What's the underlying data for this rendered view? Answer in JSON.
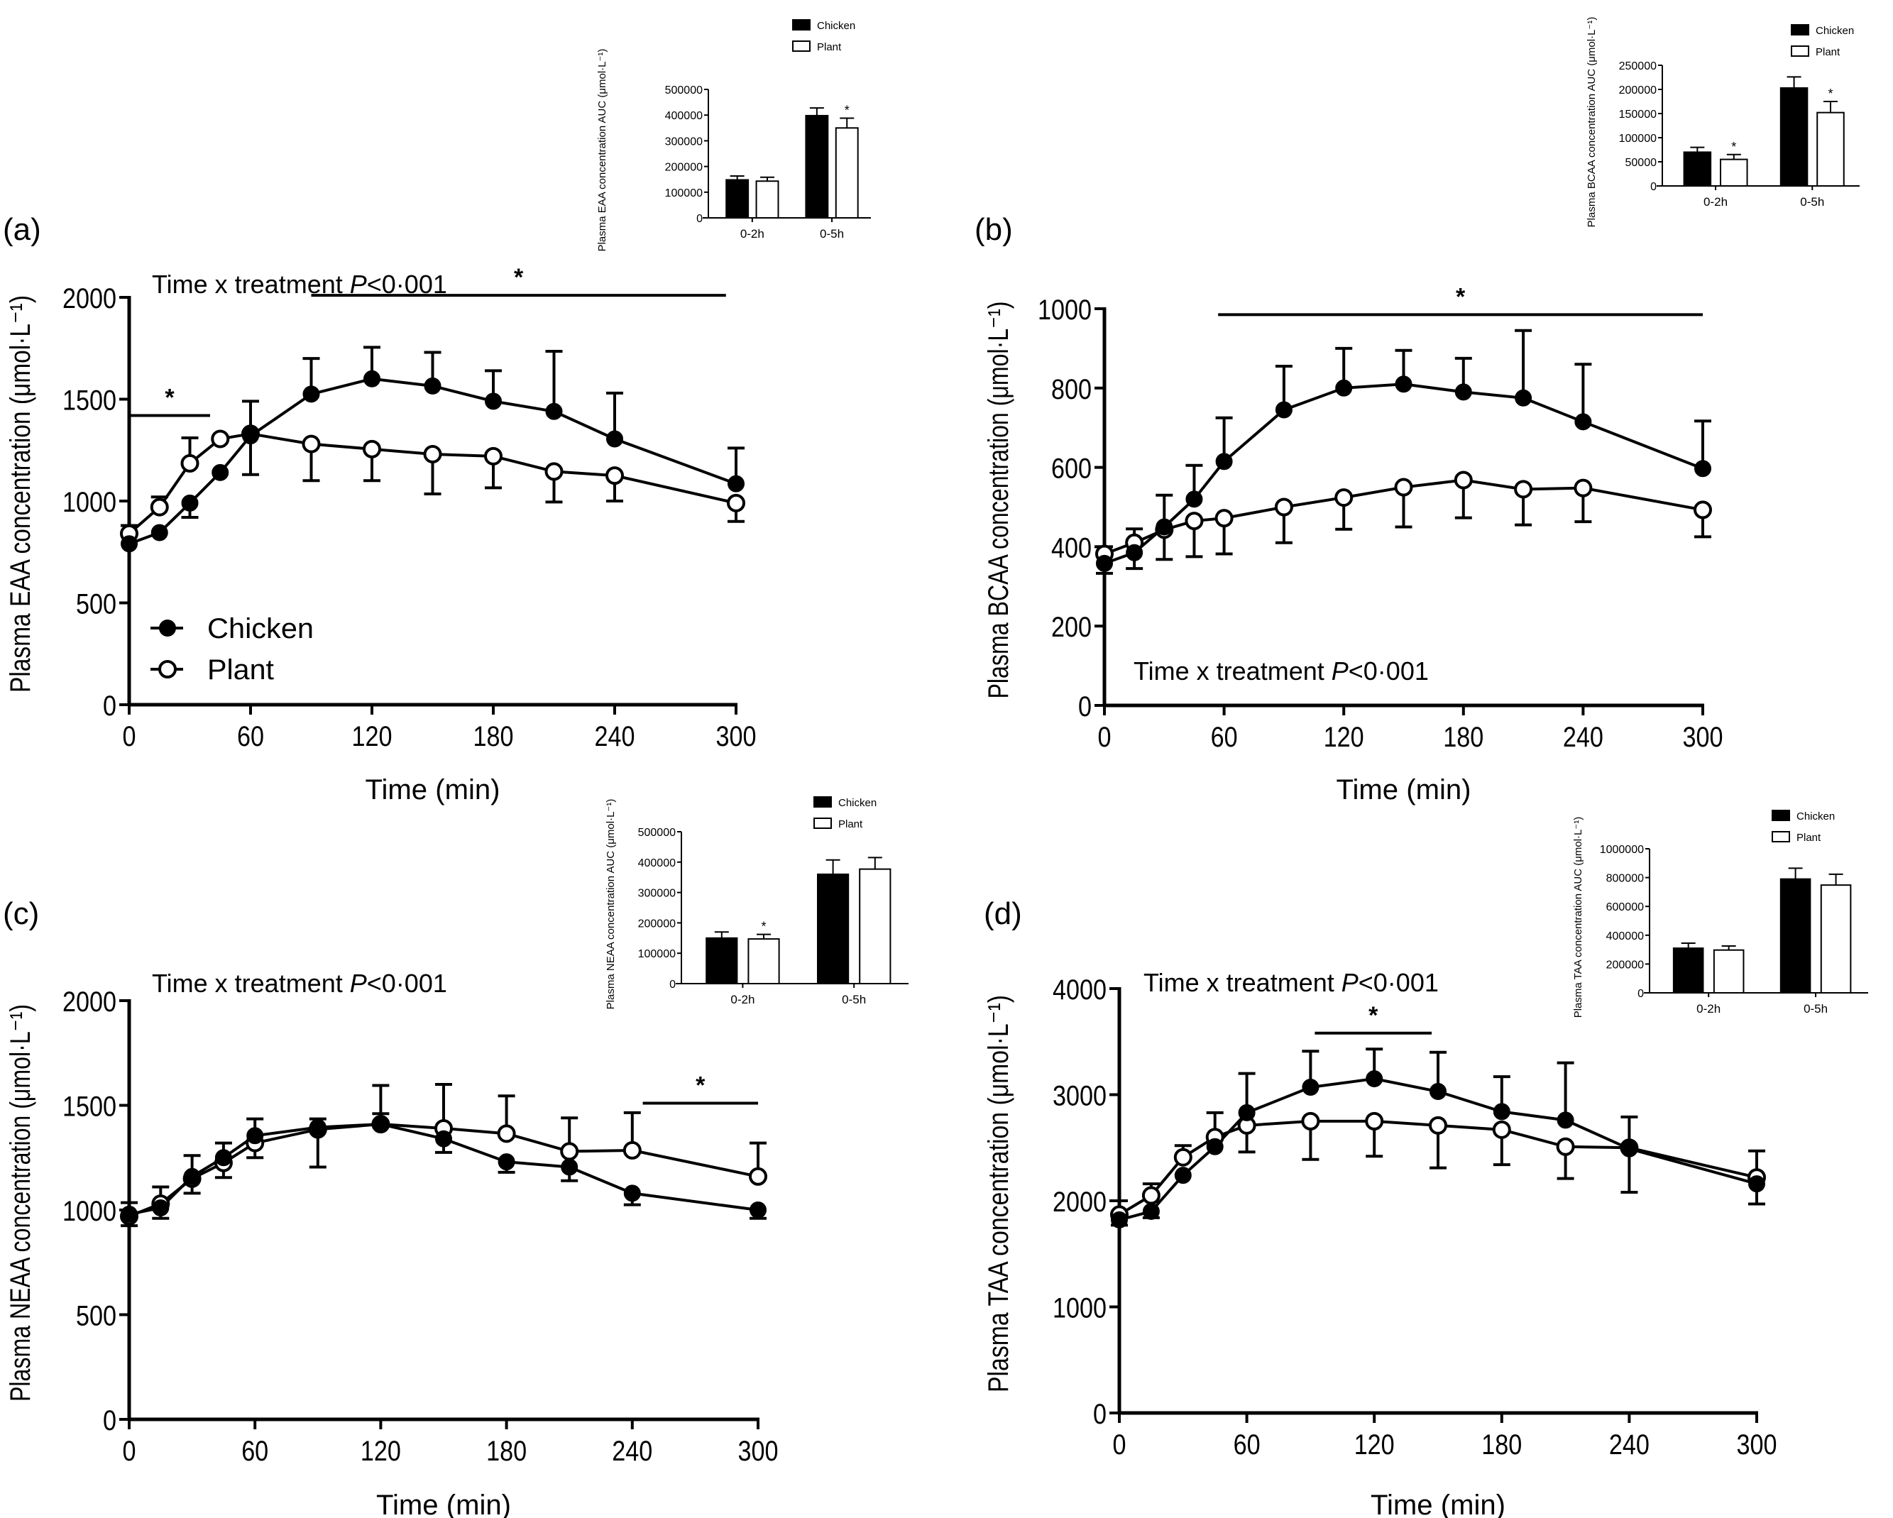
{
  "figure": {
    "legend": {
      "chicken": "Chicken",
      "plant": "Plant"
    }
  },
  "chart_data": [
    {
      "panel": "(a)",
      "type": "line",
      "title": "Time x treatment P<0·001",
      "annotation_prefix": "Time x treatment ",
      "annotation_p": "P",
      "annotation_suffix": "<0·001",
      "xlabel": "Time (min)",
      "ylabel": "Plasma EAA concentration (μmol·L⁻¹)",
      "xlim": [
        0,
        300
      ],
      "ylim": [
        0,
        2000
      ],
      "xticks": [
        0,
        60,
        120,
        180,
        240,
        300
      ],
      "yticks": [
        0,
        500,
        1000,
        1500,
        2000
      ],
      "legend_position": "bottom-left",
      "x": [
        0,
        15,
        30,
        45,
        60,
        90,
        120,
        150,
        180,
        210,
        240,
        300
      ],
      "series": [
        {
          "name": "Chicken",
          "marker": "filled-circle",
          "values": [
            790,
            845,
            990,
            1140,
            1320,
            1525,
            1600,
            1565,
            1490,
            1440,
            1305,
            1085
          ],
          "sd": [
            0,
            0,
            70,
            0,
            190,
            175,
            155,
            165,
            150,
            295,
            225,
            175
          ]
        },
        {
          "name": "Plant",
          "marker": "open-circle",
          "values": [
            840,
            970,
            1185,
            1305,
            1330,
            1280,
            1255,
            1230,
            1220,
            1145,
            1125,
            990
          ],
          "sd": [
            40,
            50,
            125,
            0,
            160,
            180,
            155,
            195,
            155,
            150,
            125,
            90
          ]
        }
      ],
      "significance_bars": [
        {
          "from": 0,
          "to": 40,
          "label": "*",
          "y": 1420
        },
        {
          "from": 90,
          "to": 295,
          "label": "*",
          "y": 2010
        }
      ],
      "inset": {
        "type": "bar",
        "ylabel": "Plasma EAA concentration AUC (μmol·L⁻¹)",
        "categories": [
          "0-2h",
          "0-5h"
        ],
        "ylim": [
          0,
          500000
        ],
        "yticks": [
          "0",
          "100000",
          "200000",
          "300000",
          "400000",
          "500000"
        ],
        "series": [
          {
            "name": "Chicken",
            "values": [
              148000,
              398000
            ],
            "sd": [
              15000,
              30000
            ],
            "star": [
              false,
              false
            ]
          },
          {
            "name": "Plant",
            "values": [
              143000,
              350000
            ],
            "sd": [
              15000,
              38000
            ],
            "star": [
              false,
              true
            ]
          }
        ]
      }
    },
    {
      "panel": "(b)",
      "type": "line",
      "title": "Time x treatment P<0·001",
      "annotation_prefix": "Time x treatment ",
      "annotation_p": "P",
      "annotation_suffix": "<0·001",
      "xlabel": "Time (min)",
      "ylabel": "Plasma BCAA concentration (μmol·L⁻¹)",
      "xlim": [
        0,
        300
      ],
      "ylim": [
        0,
        1000
      ],
      "xticks": [
        0,
        60,
        120,
        180,
        240,
        300
      ],
      "yticks": [
        0,
        200,
        400,
        600,
        800,
        1000
      ],
      "x": [
        0,
        15,
        30,
        45,
        60,
        90,
        120,
        150,
        180,
        210,
        240,
        300
      ],
      "series": [
        {
          "name": "Chicken",
          "marker": "filled-circle",
          "values": [
            358,
            385,
            450,
            520,
            615,
            745,
            800,
            810,
            790,
            775,
            715,
            597
          ],
          "sd": [
            25,
            40,
            80,
            85,
            110,
            110,
            100,
            85,
            85,
            170,
            145,
            120
          ]
        },
        {
          "name": "Plant",
          "marker": "open-circle",
          "values": [
            382,
            410,
            443,
            465,
            472,
            500,
            524,
            550,
            568,
            545,
            548,
            493
          ],
          "sd": [
            18,
            35,
            75,
            90,
            90,
            90,
            80,
            100,
            95,
            90,
            85,
            68
          ]
        }
      ],
      "significance_bars": [
        {
          "from": 57,
          "to": 300,
          "label": "*",
          "y": 985
        }
      ],
      "inset": {
        "type": "bar",
        "ylabel": "Plasma BCAA concentration AUC (μmol·L⁻¹)",
        "categories": [
          "0-2h",
          "0-5h"
        ],
        "ylim": [
          0,
          250000
        ],
        "yticks": [
          "0",
          "50000",
          "100000",
          "150000",
          "200000",
          "250000"
        ],
        "series": [
          {
            "name": "Chicken",
            "values": [
              70000,
              203000
            ],
            "sd": [
              10000,
              23000
            ],
            "star": [
              false,
              false
            ]
          },
          {
            "name": "Plant",
            "values": [
              55000,
              152000
            ],
            "sd": [
              10000,
              23000
            ],
            "star": [
              true,
              true
            ]
          }
        ]
      }
    },
    {
      "panel": "(c)",
      "type": "line",
      "title": "Time x treatment P<0·001",
      "annotation_prefix": "Time x treatment ",
      "annotation_p": "P",
      "annotation_suffix": "<0·001",
      "xlabel": "Time (min)",
      "ylabel": "Plasma NEAA concentration (μmol·L⁻¹)",
      "xlim": [
        0,
        300
      ],
      "ylim": [
        0,
        2000
      ],
      "xticks": [
        0,
        60,
        120,
        180,
        240,
        300
      ],
      "yticks": [
        0,
        500,
        1000,
        1500,
        2000
      ],
      "x": [
        0,
        15,
        30,
        45,
        60,
        90,
        120,
        150,
        180,
        210,
        240,
        300
      ],
      "series": [
        {
          "name": "Chicken",
          "marker": "filled-circle",
          "values": [
            980,
            1010,
            1160,
            1250,
            1355,
            1395,
            1410,
            1340,
            1230,
            1205,
            1080,
            1000
          ],
          "sd": [
            55,
            50,
            100,
            70,
            80,
            40,
            50,
            65,
            50,
            65,
            55,
            40
          ]
        },
        {
          "name": "Plant",
          "marker": "open-circle",
          "values": [
            970,
            1030,
            1150,
            1225,
            1320,
            1385,
            1410,
            1390,
            1365,
            1280,
            1285,
            1160
          ],
          "sd": [
            45,
            80,
            70,
            70,
            70,
            180,
            185,
            210,
            180,
            160,
            180,
            160
          ]
        }
      ],
      "significance_bars": [
        {
          "from": 245,
          "to": 300,
          "label": "*",
          "y": 1510
        }
      ],
      "inset": {
        "type": "bar",
        "ylabel": "Plasma NEAA concentration AUC (μmol·L⁻¹)",
        "categories": [
          "0-2h",
          "0-5h"
        ],
        "ylim": [
          0,
          500000
        ],
        "yticks": [
          "0",
          "100000",
          "200000",
          "300000",
          "400000",
          "500000"
        ],
        "series": [
          {
            "name": "Chicken",
            "values": [
              150000,
              360000
            ],
            "sd": [
              20000,
              47000
            ],
            "star": [
              false,
              false
            ]
          },
          {
            "name": "Plant",
            "values": [
              147000,
              377000
            ],
            "sd": [
              15000,
              38000
            ],
            "star": [
              true,
              false
            ]
          }
        ]
      }
    },
    {
      "panel": "(d)",
      "type": "line",
      "title": "Time x treatment P<0·001",
      "annotation_prefix": "Time x treatment ",
      "annotation_p": "P",
      "annotation_suffix": "<0·001",
      "xlabel": "Time (min)",
      "ylabel": "Plasma TAA concentration (μmol·L⁻¹)",
      "xlim": [
        0,
        300
      ],
      "ylim": [
        0,
        4000
      ],
      "xticks": [
        0,
        60,
        120,
        180,
        240,
        300
      ],
      "yticks": [
        0,
        1000,
        2000,
        3000,
        4000
      ],
      "x": [
        0,
        15,
        30,
        45,
        60,
        90,
        120,
        150,
        180,
        210,
        240,
        300
      ],
      "series": [
        {
          "name": "Chicken",
          "marker": "filled-circle",
          "values": [
            1820,
            1900,
            2240,
            2510,
            2830,
            3070,
            3150,
            3030,
            2840,
            2760,
            2490,
            2160
          ],
          "sd": [
            50,
            60,
            0,
            0,
            370,
            340,
            280,
            370,
            330,
            540,
            410,
            190
          ]
        },
        {
          "name": "Plant",
          "marker": "open-circle",
          "values": [
            1870,
            2050,
            2410,
            2600,
            2710,
            2750,
            2750,
            2710,
            2670,
            2510,
            2500,
            2220
          ],
          "sd": [
            130,
            110,
            110,
            230,
            250,
            360,
            330,
            400,
            330,
            300,
            290,
            250
          ]
        }
      ],
      "significance_bars": [
        {
          "from": 92,
          "to": 147,
          "label": "*",
          "y": 3580
        }
      ],
      "inset": {
        "type": "bar",
        "ylabel": "Plasma TAA concentration AUC (μmol·L⁻¹)",
        "categories": [
          "0-2h",
          "0-5h"
        ],
        "ylim": [
          0,
          1000000
        ],
        "yticks": [
          "0",
          "200000",
          "400000",
          "600000",
          "800000",
          "1000000"
        ],
        "series": [
          {
            "name": "Chicken",
            "values": [
              310000,
              790000
            ],
            "sd": [
              35000,
              75000
            ],
            "star": [
              false,
              false
            ]
          },
          {
            "name": "Plant",
            "values": [
              297000,
              748000
            ],
            "sd": [
              28000,
              75000
            ],
            "star": [
              false,
              false
            ]
          }
        ]
      }
    }
  ]
}
